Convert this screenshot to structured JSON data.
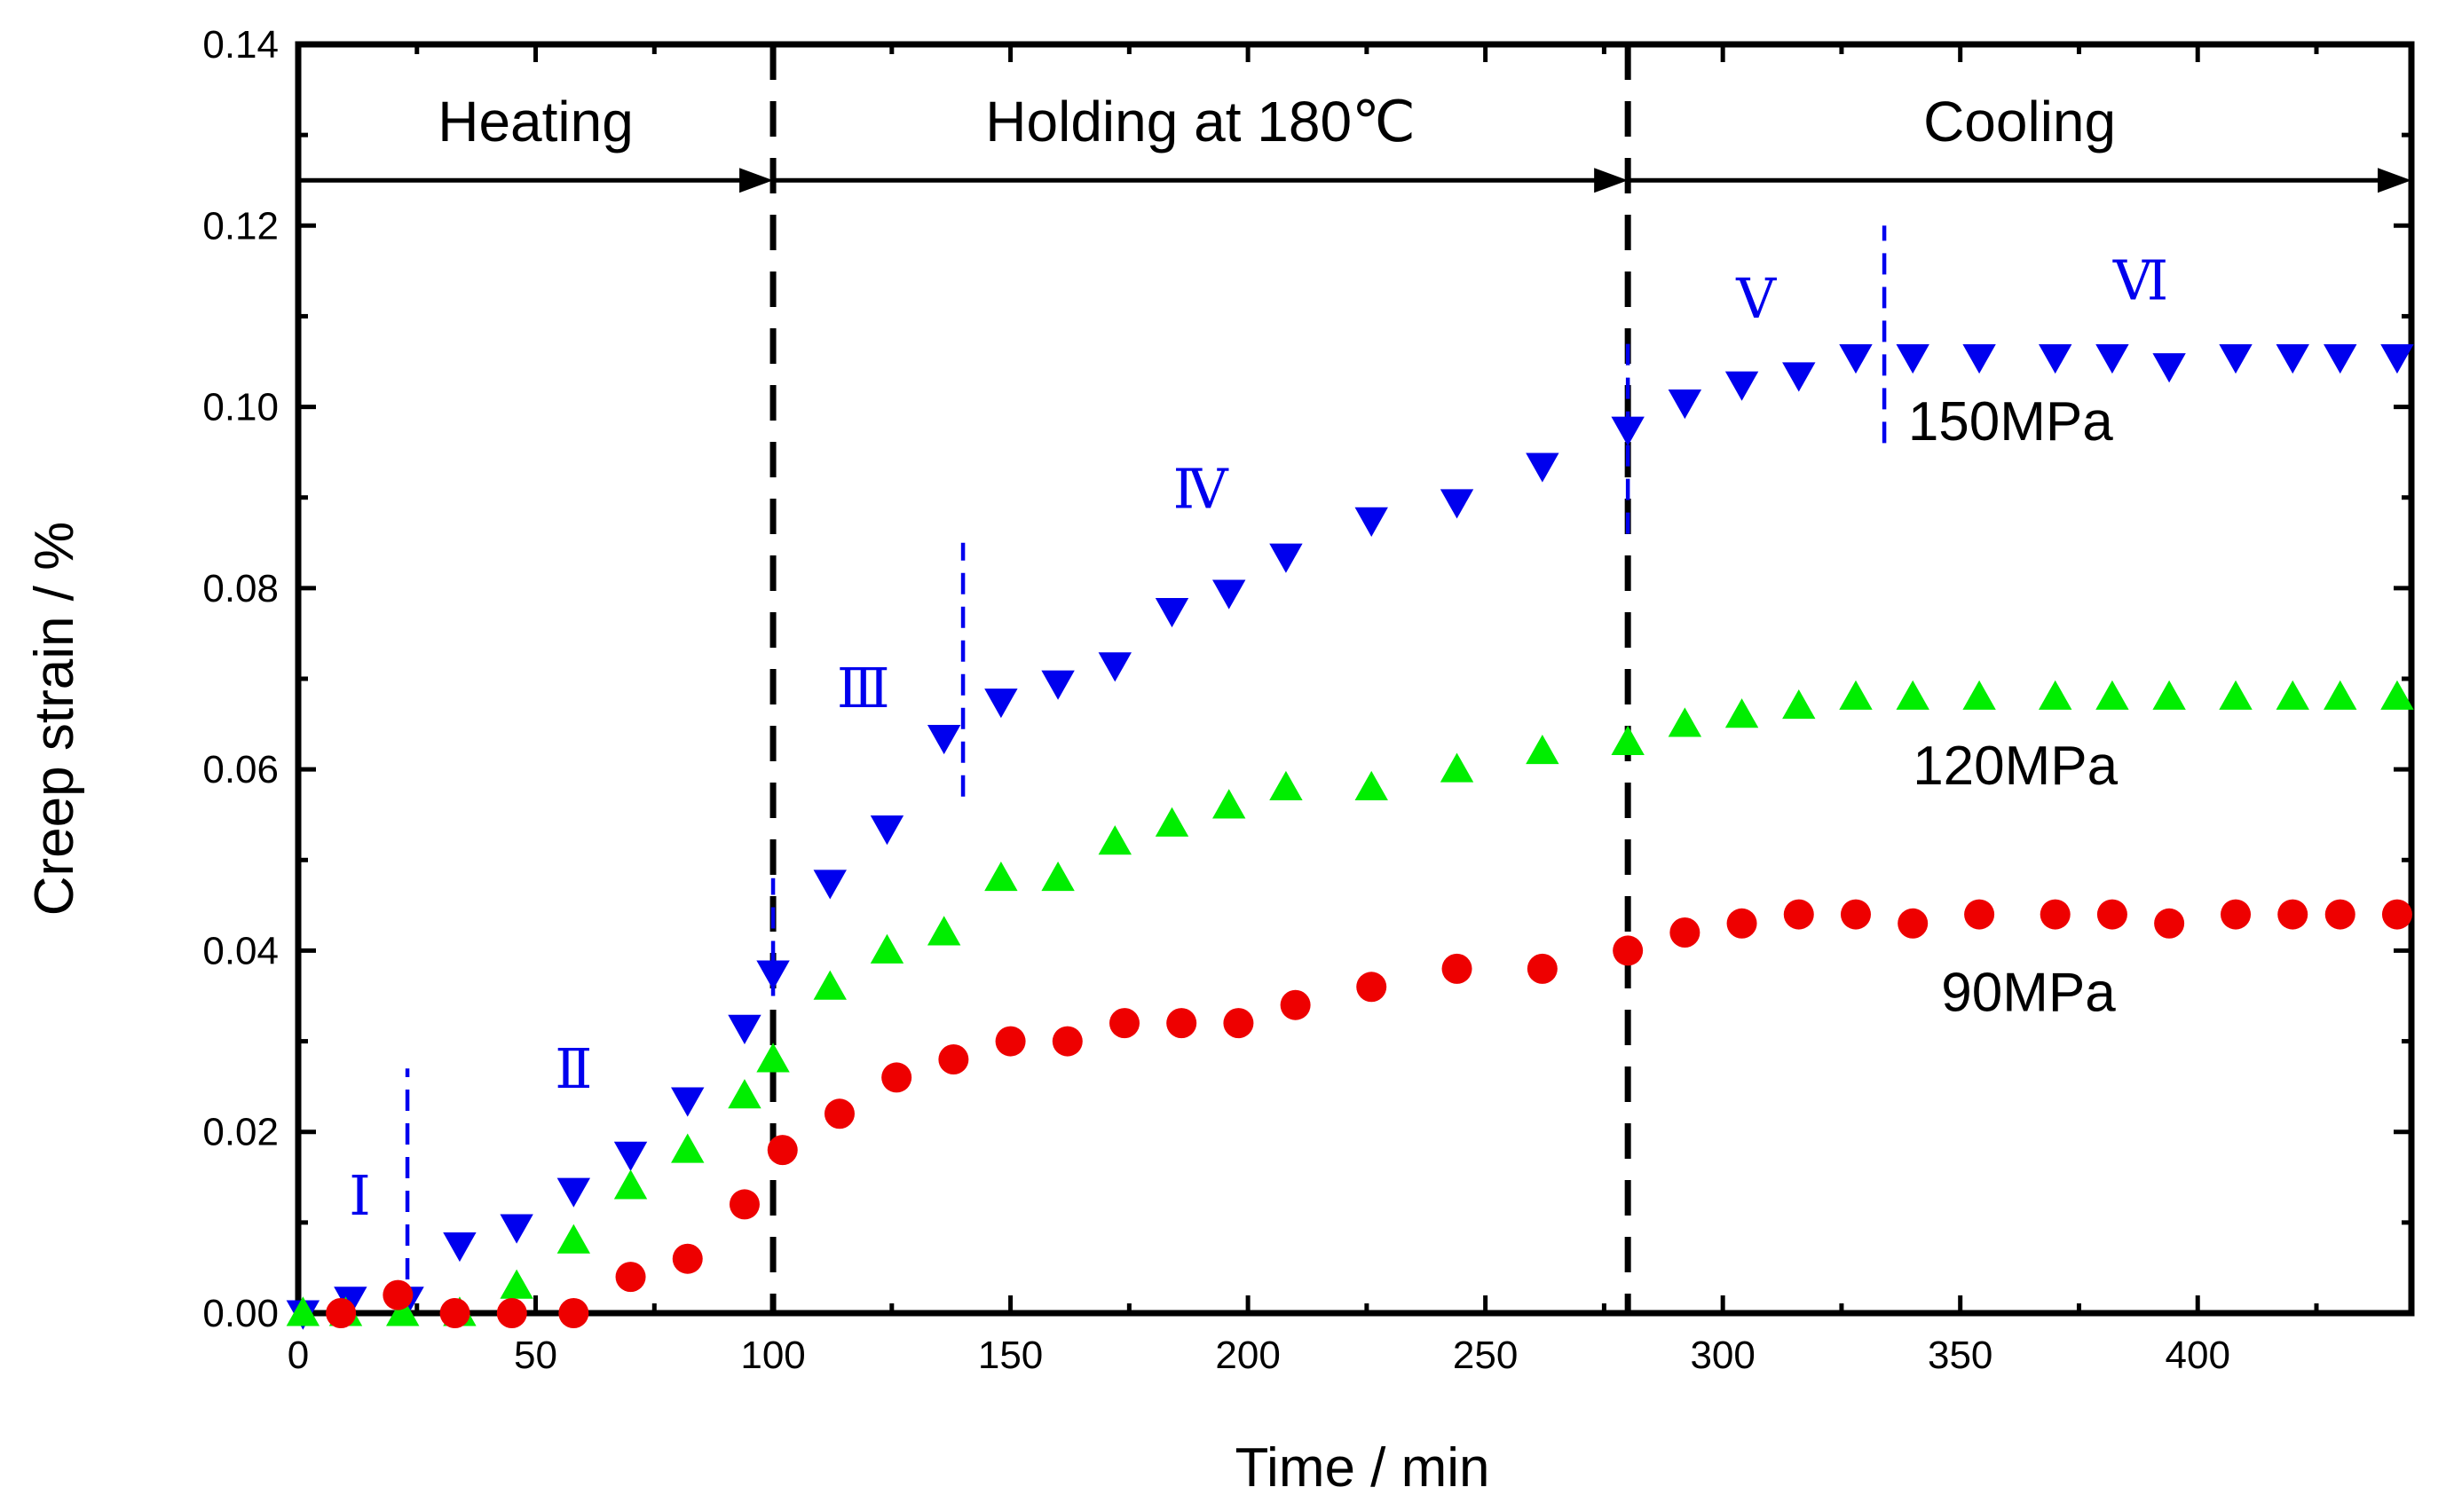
{
  "chart_data": {
    "type": "scatter",
    "title": "",
    "xlabel": "Time / min",
    "ylabel": "Creep strain / %",
    "xlim": [
      0,
      445
    ],
    "ylim": [
      0,
      0.14
    ],
    "x_ticks": [
      0,
      50,
      100,
      150,
      200,
      250,
      300,
      350,
      400
    ],
    "x_tick_labels": [
      "0",
      "50",
      "100",
      "150",
      "200",
      "250",
      "300",
      "350",
      "400"
    ],
    "y_ticks": [
      0,
      0.02,
      0.04,
      0.06,
      0.08,
      0.1,
      0.12,
      0.14
    ],
    "y_tick_labels": [
      "0.00",
      "0.02",
      "0.04",
      "0.06",
      "0.08",
      "0.10",
      "0.12",
      "0.14"
    ],
    "grid": false,
    "phases": [
      {
        "label": "Heating",
        "x_start": 0,
        "x_end": 100
      },
      {
        "label": "Holding at 180℃",
        "x_start": 100,
        "x_end": 280
      },
      {
        "label": "Cooling",
        "x_start": 280,
        "x_end": 445
      }
    ],
    "phase_arrow_y": 0.125,
    "phase_label_y": 0.1315,
    "phase_boundaries": [
      100,
      280
    ],
    "stage_boundaries": [
      {
        "x": 23,
        "y_min": 0,
        "y_max": 0.027
      },
      {
        "x": 100,
        "y_min": 0.035,
        "y_max": 0.048
      },
      {
        "x": 140,
        "y_min": 0.057,
        "y_max": 0.085
      },
      {
        "x": 280,
        "y_min": 0.086,
        "y_max": 0.108
      },
      {
        "x": 334,
        "y_min": 0.096,
        "y_max": 0.12
      }
    ],
    "stages": [
      {
        "label": "Ⅰ",
        "x": 13,
        "y": 0.013
      },
      {
        "label": "Ⅱ",
        "x": 58,
        "y": 0.027
      },
      {
        "label": "Ⅲ",
        "x": 119,
        "y": 0.069
      },
      {
        "label": "Ⅳ",
        "x": 190,
        "y": 0.091
      },
      {
        "label": "Ⅴ",
        "x": 307,
        "y": 0.112
      },
      {
        "label": "Ⅵ",
        "x": 388,
        "y": 0.114
      }
    ],
    "series": [
      {
        "name": "150MPa",
        "marker": "triangle-down",
        "color": "#0000ee",
        "label_pos": [
          339,
          0.0985
        ],
        "x": [
          1,
          11,
          23,
          34,
          46,
          58,
          70,
          82,
          94,
          100,
          112,
          124,
          136,
          148,
          160,
          172,
          184,
          196,
          208,
          226,
          244,
          262,
          280,
          292,
          304,
          316,
          328,
          340,
          354,
          370,
          382,
          394,
          408,
          420,
          430,
          442
        ],
        "y": [
          0,
          0.0015,
          0.0015,
          0.0075,
          0.0095,
          0.0135,
          0.0175,
          0.0235,
          0.0315,
          0.0375,
          0.0475,
          0.0535,
          0.0635,
          0.0675,
          0.0695,
          0.0715,
          0.0775,
          0.0795,
          0.0835,
          0.0875,
          0.0895,
          0.0935,
          0.0975,
          0.1005,
          0.1025,
          0.1035,
          0.1055,
          0.1055,
          0.1055,
          0.1055,
          0.1055,
          0.1045,
          0.1055,
          0.1055,
          0.1055,
          0.1055
        ]
      },
      {
        "name": "120MPa",
        "marker": "triangle-up",
        "color": "#00ee00",
        "label_pos": [
          340,
          0.0605
        ],
        "x": [
          1,
          10,
          22,
          34,
          46,
          58,
          70,
          82,
          94,
          100,
          112,
          124,
          136,
          148,
          160,
          172,
          184,
          196,
          208,
          226,
          244,
          262,
          280,
          292,
          304,
          316,
          328,
          340,
          354,
          370,
          382,
          394,
          408,
          420,
          430,
          442
        ],
        "y": [
          0,
          0,
          0,
          0,
          0.003,
          0.008,
          0.014,
          0.018,
          0.024,
          0.028,
          0.036,
          0.04,
          0.042,
          0.048,
          0.048,
          0.052,
          0.054,
          0.056,
          0.058,
          0.058,
          0.06,
          0.062,
          0.063,
          0.065,
          0.066,
          0.067,
          0.068,
          0.068,
          0.068,
          0.068,
          0.068,
          0.068,
          0.068,
          0.068,
          0.068,
          0.068
        ]
      },
      {
        "name": "90MPa",
        "marker": "circle",
        "color": "#ee0000",
        "label_pos": [
          346,
          0.0355
        ],
        "x": [
          9,
          21,
          33,
          45,
          58,
          70,
          82,
          94,
          102,
          114,
          126,
          138,
          150,
          162,
          174,
          186,
          198,
          210,
          226,
          244,
          262,
          280,
          292,
          304,
          316,
          328,
          340,
          354,
          370,
          382,
          394,
          408,
          420,
          430,
          442
        ],
        "y": [
          0,
          0.002,
          0,
          0,
          0,
          0.004,
          0.006,
          0.012,
          0.018,
          0.022,
          0.026,
          0.028,
          0.03,
          0.03,
          0.032,
          0.032,
          0.032,
          0.034,
          0.036,
          0.038,
          0.038,
          0.04,
          0.042,
          0.043,
          0.044,
          0.044,
          0.043,
          0.044,
          0.044,
          0.044,
          0.043,
          0.044,
          0.044,
          0.044,
          0.044
        ]
      }
    ]
  }
}
